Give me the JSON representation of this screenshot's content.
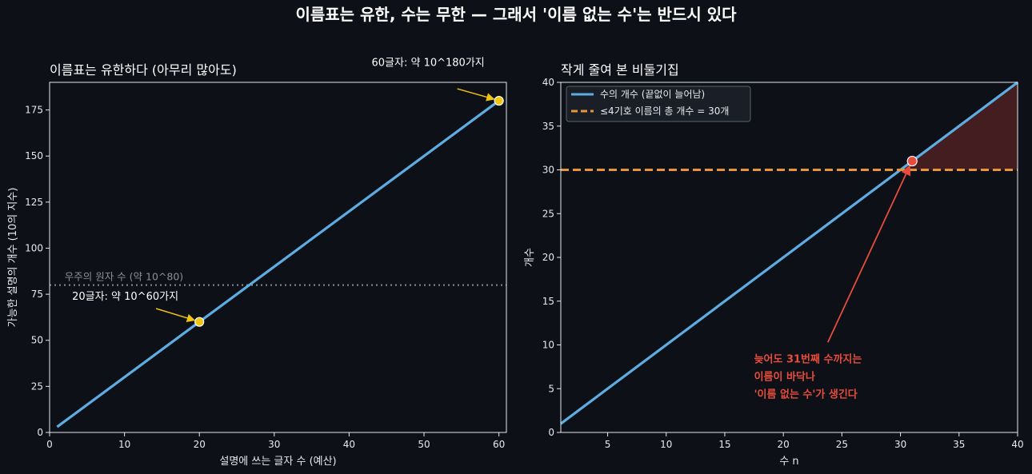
{
  "suptitle": "이름표는 유한, 수는 무한 — 그래서 '이름 없는 수'는 반드시 있다",
  "colors": {
    "background": "#0d1017",
    "line_blue": "#5dade2",
    "dashed_orange": "#e8943a",
    "marker_yellow": "#f1c40f",
    "accent_red": "#e74c3c",
    "shade_red": "#4a1f22",
    "reference_gray": "#8b8f96"
  },
  "chart_data": [
    {
      "type": "line",
      "title": "이름표는 유한하다 (아무리 많아도)",
      "xlabel": "설명에 쓰는 글자 수 (예산)",
      "ylabel": "가능한 설명의 개수 (10의 지수)",
      "xlim": [
        0,
        61
      ],
      "ylim": [
        0,
        190
      ],
      "xticks": [
        0,
        10,
        20,
        30,
        40,
        50,
        60
      ],
      "yticks": [
        0,
        25,
        50,
        75,
        100,
        125,
        150,
        175
      ],
      "grid": false,
      "series": [
        {
          "x": [
            1,
            60
          ],
          "y": [
            3,
            180
          ],
          "style": "solid"
        }
      ],
      "reference_line": {
        "y": 80,
        "label": "우주의 원자 수 (약 10^80)",
        "style": "dotted"
      },
      "markers": [
        {
          "x": 20,
          "y": 60,
          "label": "20글자: 약 10^60가지"
        },
        {
          "x": 60,
          "y": 180,
          "label": "60글자: 약 10^180가지"
        }
      ]
    },
    {
      "type": "line",
      "title": "작게 줄여 본 비둘기집",
      "xlabel": "수 n",
      "ylabel": "개수",
      "xlim": [
        1,
        40
      ],
      "ylim": [
        0,
        40
      ],
      "xticks": [
        5,
        10,
        15,
        20,
        25,
        30,
        35,
        40
      ],
      "yticks": [
        0,
        5,
        10,
        15,
        20,
        25,
        30,
        35,
        40
      ],
      "grid": false,
      "legend_position": "top-left",
      "series": [
        {
          "name": "수의 개수 (끝없이 늘어남)",
          "x": [
            1,
            40
          ],
          "y": [
            1,
            40
          ],
          "style": "solid"
        },
        {
          "name": "≤4기호 이름의 총 개수 = 30개",
          "x": [
            1,
            40
          ],
          "y": [
            30,
            30
          ],
          "style": "dashed"
        }
      ],
      "shaded_region": {
        "x_from": 30,
        "x_to": 40,
        "between": [
          "series 1",
          "series 2"
        ]
      },
      "marker": {
        "x": 31,
        "y": 31
      },
      "annotation": {
        "lines": [
          "늦어도 31번째 수까지는",
          "이름이 바닥나",
          "'이름 없는 수'가 생긴다"
        ],
        "x": 17.5,
        "y": 8
      }
    }
  ]
}
